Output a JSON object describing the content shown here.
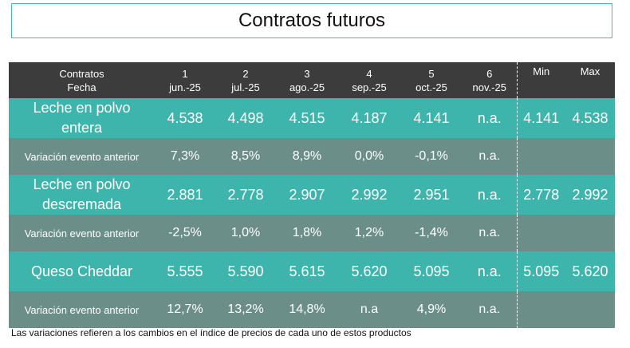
{
  "title": "Contratos futuros",
  "header": {
    "label_line1": "Contratos",
    "label_line2": "Fecha",
    "contracts": [
      {
        "num": "1",
        "date": "jun.-25"
      },
      {
        "num": "2",
        "date": "jul.-25"
      },
      {
        "num": "3",
        "date": "ago.-25"
      },
      {
        "num": "4",
        "date": "sep.-25"
      },
      {
        "num": "5",
        "date": "oct.-25"
      },
      {
        "num": "6",
        "date": "nov.-25"
      }
    ],
    "min": "Min",
    "max": "Max"
  },
  "rows": [
    {
      "name_line1": "Leche en polvo",
      "name_line2": "entera",
      "values": [
        "4.538",
        "4.498",
        "4.515",
        "4.187",
        "4.141",
        "n.a."
      ],
      "min": "4.141",
      "max": "4.538"
    },
    {
      "name_line1": "Variación evento anterior",
      "name_line2": "",
      "values": [
        "7,3%",
        "8,5%",
        "8,9%",
        "0,0%",
        "-0,1%",
        "n.a."
      ],
      "min": "",
      "max": ""
    },
    {
      "name_line1": "Leche en polvo",
      "name_line2": "descremada",
      "values": [
        "2.881",
        "2.778",
        "2.907",
        "2.992",
        "2.951",
        "n.a."
      ],
      "min": "2.778",
      "max": "2.992"
    },
    {
      "name_line1": "Variación evento anterior",
      "name_line2": "",
      "values": [
        "-2,5%",
        "1,0%",
        "1,8%",
        "1,2%",
        "-1,4%",
        "n.a."
      ],
      "min": "",
      "max": ""
    },
    {
      "name_line1": "Queso Cheddar",
      "name_line2": "",
      "values": [
        "5.555",
        "5.590",
        "5.615",
        "5.620",
        "5.095",
        "n.a."
      ],
      "min": "5.095",
      "max": "5.620"
    },
    {
      "name_line1": "Variación evento anterior",
      "name_line2": "",
      "values": [
        "12,7%",
        "13,2%",
        "14,8%",
        "n.a",
        "4,9%",
        "n.a."
      ],
      "min": "",
      "max": ""
    }
  ],
  "footnote": "Las variaciones refieren a los cambios en el índice de precios de cada uno de estos productos",
  "colors": {
    "header_bg": "#3c3c3c",
    "product_bg": "#3db5ad",
    "variation_bg": "#6b8f88",
    "title_border": "#49b9b0"
  }
}
